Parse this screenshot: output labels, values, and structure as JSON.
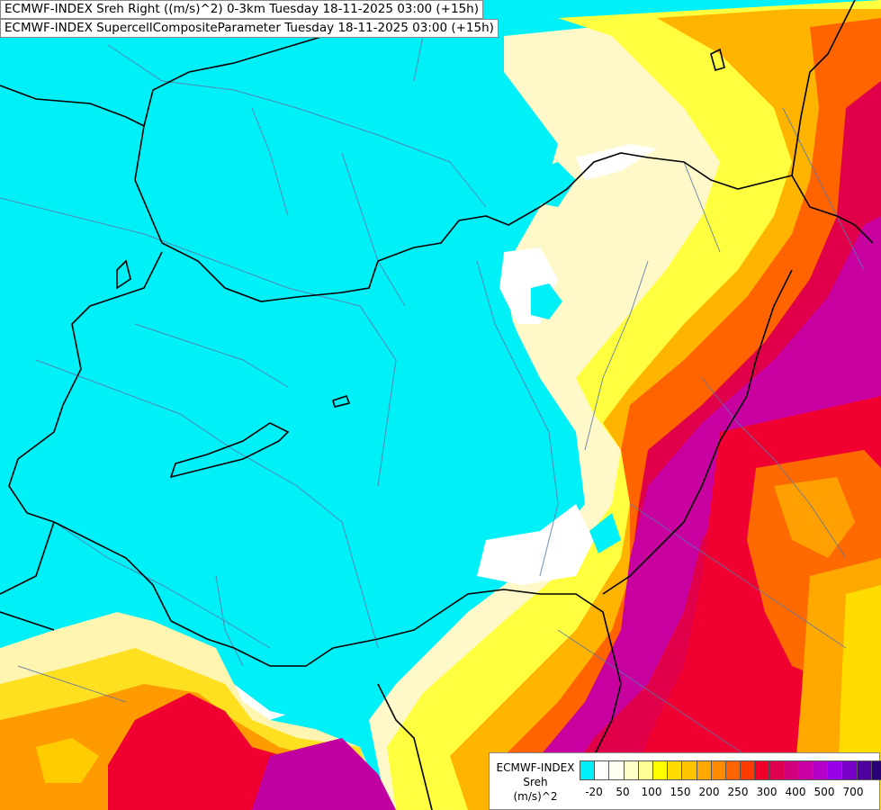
{
  "header": {
    "line1": "ECMWF-INDEX Sreh Right ((m/s)^2) 0-3km Tuesday 18-11-2025 03:00 (+15h)",
    "line2": "ECMWF-INDEX SupercellCompositeParameter Tuesday 18-11-2025 03:00 (+15h)"
  },
  "legend": {
    "title1": "ECMWF-INDEX",
    "title2": "Sreh",
    "title3": "(m/s)^2",
    "ticks": [
      "-20",
      "50",
      "100",
      "150",
      "200",
      "250",
      "300",
      "400",
      "500",
      "700"
    ],
    "colors": [
      "#00f0f8",
      "#ffffff",
      "#fffff0",
      "#ffffc8",
      "#ffff96",
      "#ffff00",
      "#ffdc00",
      "#ffc400",
      "#ffa800",
      "#ff8c00",
      "#ff6400",
      "#ff3c00",
      "#f00028",
      "#e00050",
      "#d2007d",
      "#c800a5",
      "#b400c8",
      "#9600e6",
      "#7800c8",
      "#5000a0",
      "#280078"
    ]
  },
  "map_colors": {
    "ocean_cyan": "#00f0f8",
    "borders": "#000000",
    "rivers": "#5a78a8"
  }
}
